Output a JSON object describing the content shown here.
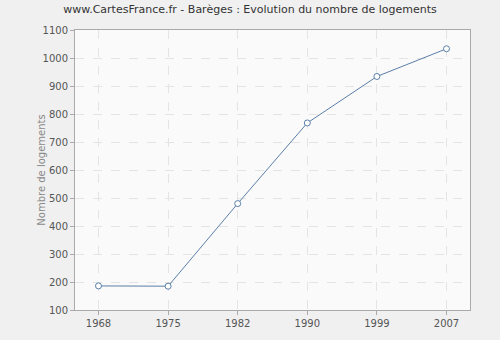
{
  "chart_data": {
    "type": "line",
    "title": "www.CartesFrance.fr - Barèges : Evolution du nombre de logements",
    "y_label": "Nombre de logements",
    "categories": [
      "1968",
      "1975",
      "1982",
      "1990",
      "1999",
      "2007"
    ],
    "values": [
      186,
      185,
      480,
      768,
      934,
      1033
    ],
    "color": "#5b7fa8",
    "marker": "circle",
    "ylim": [
      100,
      1100
    ],
    "yticks": [
      100,
      200,
      300,
      400,
      500,
      600,
      700,
      800,
      900,
      1000,
      1100
    ],
    "grid": true
  }
}
